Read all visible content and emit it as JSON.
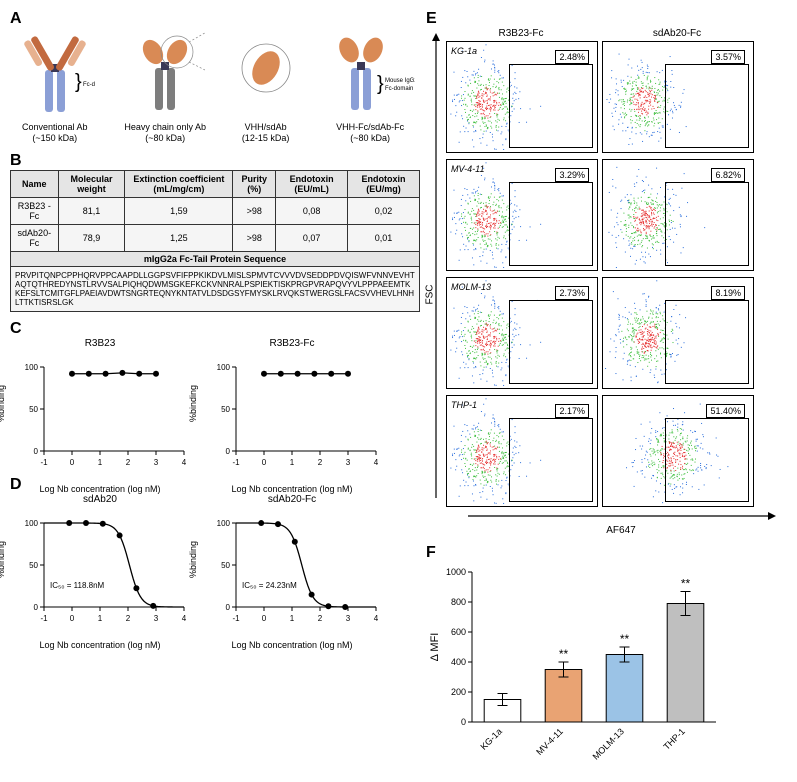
{
  "panelA": {
    "items": [
      {
        "name": "Conventional Ab",
        "mass": "(~150 kDa)",
        "braceLabel": "Fc-domain"
      },
      {
        "name": "Heavy chain only Ab",
        "mass": "(~80 kDa)",
        "braceLabel": ""
      },
      {
        "name": "VHH/sdAb",
        "mass": "(12-15 kDa)",
        "braceLabel": ""
      },
      {
        "name": "VHH-Fc/sdAb-Fc",
        "mass": "(~80 kDa)",
        "braceLabel": "Mouse IgG2a\nFc-domain"
      }
    ]
  },
  "panelB": {
    "headers": [
      "Name",
      "Molecular weight",
      "Extinction coefficient (mL/mg/cm)",
      "Purity (%)",
      "Endotoxin (EU/mL)",
      "Endotoxin (EU/mg)"
    ],
    "rows": [
      [
        "R3B23 -Fc",
        "81,1",
        "1,59",
        ">98",
        "0,08",
        "0,02"
      ],
      [
        "sdAb20-Fc",
        "78,9",
        "1,25",
        ">98",
        "0,07",
        "0,01"
      ]
    ],
    "seqHeader": "mIgG2a Fc-Tail Protein Sequence",
    "sequence": "PRVPITQNPCPPHQRVPPCAAPDLLGGPSVFIFPPKIKDVLMISLSPMVTCVVVDVSEDDPDVQISWFVNNVEVHTAQTQTHREDYNSTLRVVSALPIQHQDWMSGKEFKCKVNNRALPSPIEKTISKPRGPVRAPQVYVLPPPAEEMTKKEFSLTCMITGFLPAEIAVDWTSNGRTEQNYKNTATVLDSDGSYFMYSKLRVQKSTWERGSLFACSVVHEVLHNHLTTKTISRSLGK"
  },
  "panelC": {
    "charts": [
      {
        "title": "R3B23",
        "xlabel": "Log Nb concentration (log nM)",
        "ylabel": "%binding",
        "xlim": [
          -1,
          4
        ],
        "ylim": [
          0,
          100
        ],
        "xTicks": [
          -1,
          0,
          1,
          2,
          3,
          4
        ],
        "yTicks": [
          0,
          50,
          100
        ],
        "type": "flat",
        "values": [
          [
            0,
            92
          ],
          [
            0.6,
            92
          ],
          [
            1.2,
            92
          ],
          [
            1.8,
            93
          ],
          [
            2.4,
            92
          ],
          [
            3.0,
            92
          ]
        ]
      },
      {
        "title": "R3B23-Fc",
        "xlabel": "Log Nb concentration (log nM)",
        "ylabel": "%binding",
        "xlim": [
          -1,
          4
        ],
        "ylim": [
          0,
          100
        ],
        "xTicks": [
          -1,
          0,
          1,
          2,
          3,
          4
        ],
        "yTicks": [
          0,
          50,
          100
        ],
        "type": "flat",
        "values": [
          [
            0,
            92
          ],
          [
            0.6,
            92
          ],
          [
            1.2,
            92
          ],
          [
            1.8,
            92
          ],
          [
            2.4,
            92
          ],
          [
            3.0,
            92
          ]
        ]
      }
    ]
  },
  "panelD": {
    "charts": [
      {
        "title": "sdAb20",
        "xlabel": "Log Nb concentration (log nM)",
        "ylabel": "%binding",
        "xlim": [
          -1,
          4
        ],
        "ylim": [
          0,
          100
        ],
        "xTicks": [
          -1,
          0,
          1,
          2,
          3,
          4
        ],
        "yTicks": [
          0,
          50,
          100
        ],
        "ic50": "IC₅₀ = 118.8nM",
        "type": "sigmoid",
        "mid": 2.05,
        "slope": 5
      },
      {
        "title": "sdAb20-Fc",
        "xlabel": "Log Nb concentration (log nM)",
        "ylabel": "%binding",
        "xlim": [
          -1,
          4
        ],
        "ylim": [
          0,
          100
        ],
        "xTicks": [
          -1,
          0,
          1,
          2,
          3,
          4
        ],
        "yTicks": [
          0,
          50,
          100
        ],
        "ic50": "IC₅₀ = 24.23nM",
        "type": "sigmoid",
        "mid": 1.35,
        "slope": 5
      }
    ]
  },
  "panelE": {
    "colHeaders": [
      "R3B23-Fc",
      "sdAb20-Fc"
    ],
    "rowLabels": [
      "KG-1a",
      "MV-4-11",
      "MOLM-13",
      "THP-1"
    ],
    "fscLabel": "FSC",
    "af647Label": "AF647",
    "percentages": [
      [
        "2.48%",
        "3.57%"
      ],
      [
        "3.29%",
        "6.82%"
      ],
      [
        "2.73%",
        "8.19%"
      ],
      [
        "2.17%",
        "51.40%"
      ]
    ],
    "popShift": [
      [
        0,
        0.02
      ],
      [
        0,
        0.05
      ],
      [
        0,
        0.07
      ],
      [
        0,
        0.5
      ]
    ],
    "dotColors": {
      "dense": "#e63333",
      "mid": "#3fbf3f",
      "edge": "#2b6fdc"
    }
  },
  "panelF": {
    "ylabel": "Δ MFI",
    "ylim": [
      0,
      1000
    ],
    "yTicks": [
      0,
      200,
      400,
      600,
      800,
      1000
    ],
    "bars": [
      {
        "label": "KG-1a",
        "value": 150,
        "err": 40,
        "color": "#ffffff",
        "sig": ""
      },
      {
        "label": "MV-4-11",
        "value": 350,
        "err": 50,
        "color": "#e9a373",
        "sig": "**"
      },
      {
        "label": "MOLM-13",
        "value": 450,
        "err": 50,
        "color": "#9bc3e6",
        "sig": "**"
      },
      {
        "label": "THP-1",
        "value": 790,
        "err": 80,
        "color": "#bfbfbf",
        "sig": "**"
      }
    ]
  },
  "style": {
    "axisColor": "#000000",
    "pointColor": "#000000",
    "bg": "#ffffff",
    "ab_colors": {
      "fc": "#8b9fd6",
      "hinge": "#3a3856",
      "fab_inner": "#c26a3f",
      "fab_outer": "#e7b18f",
      "heavy_gray": "#7d7d7d",
      "vhh": "#d98a55"
    }
  }
}
